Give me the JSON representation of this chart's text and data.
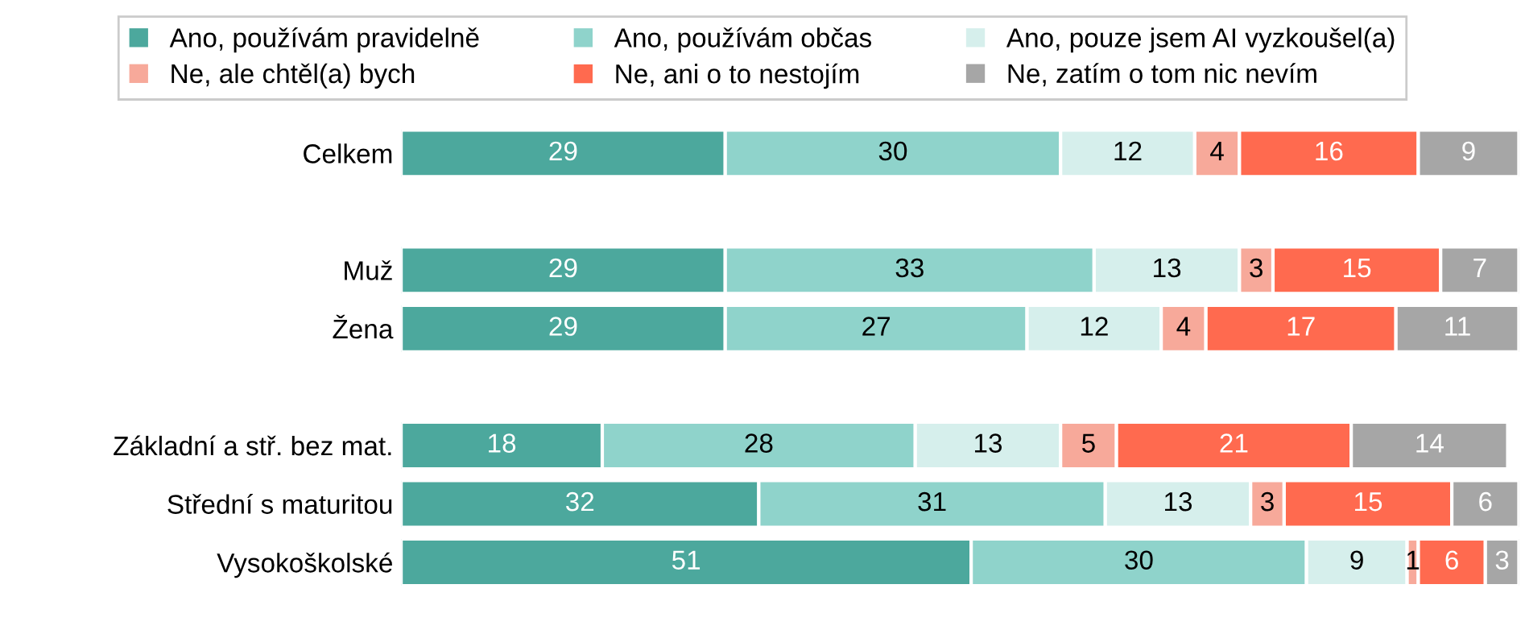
{
  "chart_data": {
    "type": "bar",
    "orientation": "horizontal",
    "stacked": true,
    "data_labels": true,
    "legend": "top",
    "grid": false,
    "tick_labels": "y",
    "xlim": [
      0,
      100
    ],
    "categories": [
      "Celkem",
      null,
      "Muž",
      "Žena",
      null,
      "Základní a stř. bez mat.",
      "Střední s maturitou",
      "Vysokoškolské"
    ],
    "series": [
      {
        "name": "Ano, používám pravidelně",
        "color": "#4ca89d",
        "values": [
          29,
          null,
          29,
          29,
          null,
          18,
          32,
          51
        ]
      },
      {
        "name": "Ano, používám občas",
        "color": "#8fd3cb",
        "values": [
          30,
          null,
          33,
          27,
          null,
          28,
          31,
          30
        ]
      },
      {
        "name": "Ano, pouze jsem AI vyzkoušel(a)",
        "color": "#d6efec",
        "values": [
          12,
          null,
          13,
          12,
          null,
          13,
          13,
          9
        ]
      },
      {
        "name": "Ne, ale chtěl(a) bych",
        "color": "#f7a99a",
        "values": [
          4,
          null,
          3,
          4,
          null,
          5,
          3,
          1
        ]
      },
      {
        "name": "Ne, ani o to nestojím",
        "color": "#ff6a4f",
        "values": [
          16,
          null,
          15,
          17,
          null,
          21,
          15,
          6
        ]
      },
      {
        "name": "Ne, zatím o tom nic nevím",
        "color": "#a6a6a6",
        "values": [
          9,
          null,
          7,
          11,
          null,
          14,
          6,
          3
        ]
      }
    ]
  }
}
